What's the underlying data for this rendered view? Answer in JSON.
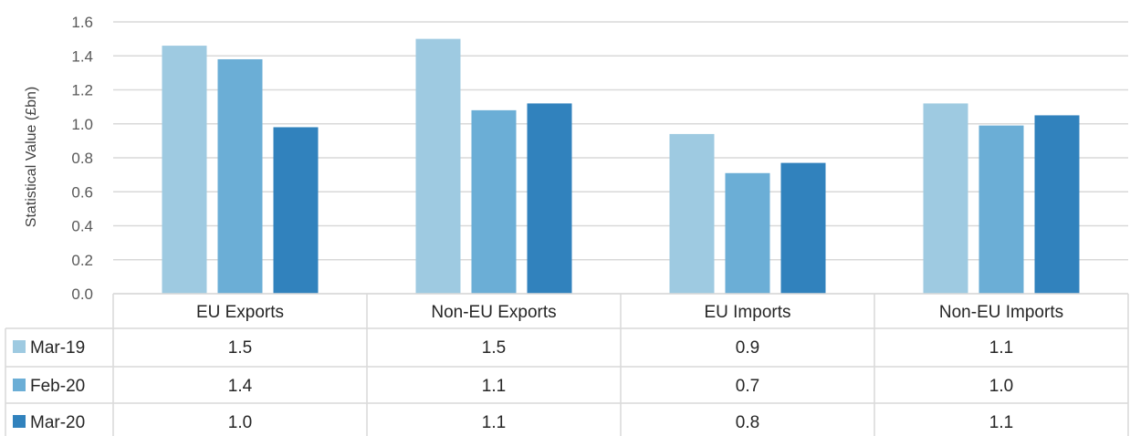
{
  "chart_data": {
    "type": "bar",
    "ylabel": "Statistical Value (£bn)",
    "ylim": [
      0,
      1.6
    ],
    "yticks": [
      "0.0",
      "0.2",
      "0.4",
      "0.6",
      "0.8",
      "1.0",
      "1.2",
      "1.4",
      "1.6"
    ],
    "grid": true,
    "categories": [
      "EU Exports",
      "Non-EU Exports",
      "EU Imports",
      "Non-EU Imports"
    ],
    "series": [
      {
        "name": "Mar-19",
        "color": "#9ecae1",
        "values": [
          1.46,
          1.5,
          0.94,
          1.12
        ],
        "labels": [
          "1.5",
          "1.5",
          "0.9",
          "1.1"
        ]
      },
      {
        "name": "Feb-20",
        "color": "#6baed6",
        "values": [
          1.38,
          1.08,
          0.71,
          0.99
        ],
        "labels": [
          "1.4",
          "1.1",
          "0.7",
          "1.0"
        ]
      },
      {
        "name": "Mar-20",
        "color": "#3182bd",
        "values": [
          0.98,
          1.12,
          0.77,
          1.05
        ],
        "labels": [
          "1.0",
          "1.1",
          "0.8",
          "1.1"
        ]
      }
    ],
    "legend": "data-table"
  }
}
